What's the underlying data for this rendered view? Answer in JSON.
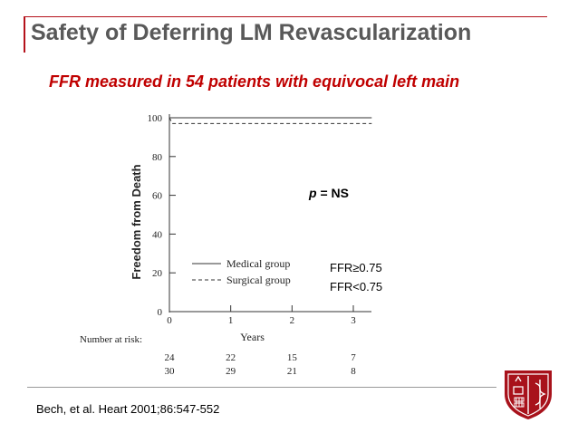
{
  "slide": {
    "title": "Safety of Deferring LM Revascularization",
    "subtitle": "FFR measured in 54 patients with equivocal left main",
    "citation": "Bech, et al. Heart 2001;86:547-552",
    "accent_color": "#b5121b",
    "logo_icon": "shield-caduceus-icon"
  },
  "chart_data": {
    "type": "line",
    "xlabel": "Years",
    "ylabel": "Freedom from Death",
    "xlim": [
      0,
      3
    ],
    "ylim": [
      0,
      100
    ],
    "x_ticks": [
      "0",
      "1",
      "2",
      "3"
    ],
    "y_ticks": [
      "0",
      "20",
      "40",
      "60",
      "80",
      "100"
    ],
    "series": [
      {
        "name": "Medical group",
        "style": "solid",
        "x": [
          0,
          3.3
        ],
        "y": [
          100,
          100
        ]
      },
      {
        "name": "Surgical group",
        "style": "dashed",
        "x": [
          0,
          0.05,
          3.3
        ],
        "y": [
          100,
          97,
          97
        ]
      }
    ],
    "annotations": {
      "p_value_italic": "p",
      "p_value_rest": " = NS",
      "group_labels": [
        "FFR≥0.75",
        "FFR<0.75"
      ]
    },
    "risk_table": {
      "label": "Number at risk:",
      "rows": [
        [
          "24",
          "22",
          "15",
          "7"
        ],
        [
          "30",
          "29",
          "21",
          "8"
        ]
      ]
    }
  }
}
